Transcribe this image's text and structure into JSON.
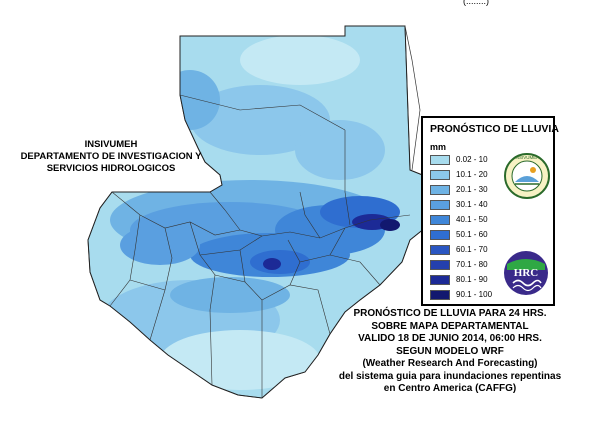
{
  "institution": {
    "line1": "INSIVUMEH",
    "line2": "DEPARTAMENTO DE INVESTIGACION Y",
    "line3": "SERVICIOS HIDROLOGICOS"
  },
  "top_fragment": "(........)",
  "legend": {
    "title": "PRONÓSTICO DE LLUVIA",
    "unit": "mm",
    "items": [
      {
        "label": "0.02 - 10",
        "color": "#a8dcee"
      },
      {
        "label": "10.1 - 20",
        "color": "#8cc7eb"
      },
      {
        "label": "20.1 - 30",
        "color": "#6fb3e4"
      },
      {
        "label": "30.1 - 40",
        "color": "#5a9fe0"
      },
      {
        "label": "40.1 - 50",
        "color": "#3f86d8"
      },
      {
        "label": "50.1 - 60",
        "color": "#2f6ed0"
      },
      {
        "label": "60.1 - 70",
        "color": "#2a56c2"
      },
      {
        "label": "70.1 - 80",
        "color": "#2440ad"
      },
      {
        "label": "80.1 - 90",
        "color": "#1c2a96"
      },
      {
        "label": "90.1 - 100",
        "color": "#12186f"
      }
    ],
    "logos": {
      "insivumeh": {
        "name": "insivumeh-logo",
        "text": "INSIVUMEH"
      },
      "hrc": {
        "name": "hrc-logo",
        "text": "HRC"
      }
    }
  },
  "caption": {
    "lines": [
      "PRONÓSTICO DE LLUVIA PARA 24 HRS.",
      "SOBRE MAPA DEPARTAMENTAL",
      "VALIDO 18 DE JUNIO 2014, 06:00 HRS.",
      "SEGUN MODELO WRF",
      "(Weather Research And Forecasting)",
      "del sistema guia  para inundaciones repentinas",
      "en Centro America (CAFFG)"
    ]
  },
  "colors": {
    "base": "#a8dcee",
    "border": "#333333"
  }
}
